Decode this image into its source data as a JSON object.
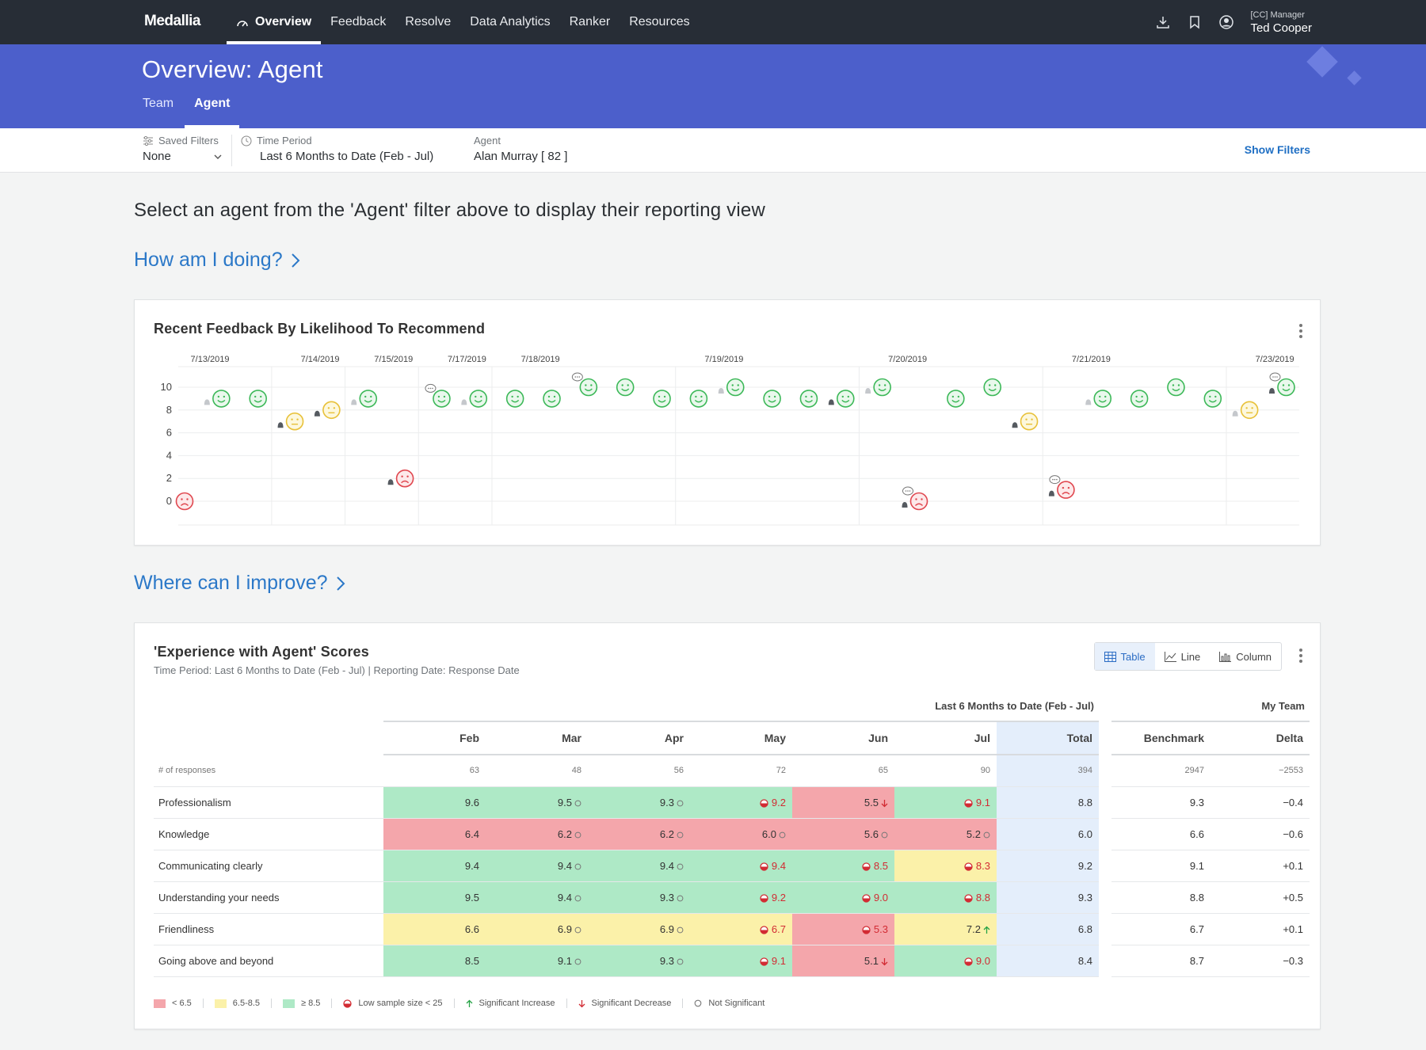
{
  "nav": {
    "logo": "Medallia",
    "items": [
      "Overview",
      "Feedback",
      "Resolve",
      "Data Analytics",
      "Ranker",
      "Resources"
    ],
    "active_index": 0,
    "user_role": "[CC] Manager",
    "user_name": "Ted Cooper"
  },
  "header": {
    "title": "Overview: Agent",
    "tabs": [
      "Team",
      "Agent"
    ],
    "active_tab": 1
  },
  "filters": {
    "saved_label": "Saved Filters",
    "saved_value": "None",
    "time_label": "Time Period",
    "time_value": "Last 6 Months to Date (Feb - Jul)",
    "agent_label": "Agent",
    "agent_value": "Alan Murray [ 82 ]",
    "show_filters": "Show Filters"
  },
  "instruction": "Select an agent from the 'Agent' filter above to display their reporting view",
  "section1": "How am I doing?",
  "section2": "Where can I improve?",
  "feedback_card": {
    "title": "Recent Feedback By Likelihood To Recommend",
    "chart_data": {
      "type": "scatter",
      "title": "Recent Feedback By Likelihood To Recommend",
      "date_labels": [
        {
          "label": "7/13/2019",
          "col": 0
        },
        {
          "label": "7/14/2019",
          "col": 3
        },
        {
          "label": "7/15/2019",
          "col": 5
        },
        {
          "label": "7/17/2019",
          "col": 7
        },
        {
          "label": "7/18/2019",
          "col": 9
        },
        {
          "label": "7/19/2019",
          "col": 14
        },
        {
          "label": "7/20/2019",
          "col": 19
        },
        {
          "label": "7/21/2019",
          "col": 24
        },
        {
          "label": "7/23/2019",
          "col": 29
        }
      ],
      "yticks": [
        0,
        2,
        4,
        6,
        8,
        10
      ],
      "ylim": [
        0,
        10
      ],
      "points": [
        {
          "col": 0,
          "value": 0,
          "sentiment": "negative"
        },
        {
          "col": 1,
          "value": 9,
          "sentiment": "positive",
          "bell": "grey"
        },
        {
          "col": 2,
          "value": 9,
          "sentiment": "positive"
        },
        {
          "col": 3,
          "value": 7,
          "sentiment": "neutral",
          "bell": "dark"
        },
        {
          "col": 4,
          "value": 8,
          "sentiment": "neutral",
          "bell": "dark"
        },
        {
          "col": 5,
          "value": 9,
          "sentiment": "positive",
          "bell": "grey"
        },
        {
          "col": 6,
          "value": 2,
          "sentiment": "negative",
          "bell": "dark"
        },
        {
          "col": 7,
          "value": 9,
          "sentiment": "positive",
          "comment": true
        },
        {
          "col": 8,
          "value": 9,
          "sentiment": "positive",
          "bell": "grey"
        },
        {
          "col": 9,
          "value": 9,
          "sentiment": "positive"
        },
        {
          "col": 10,
          "value": 9,
          "sentiment": "positive"
        },
        {
          "col": 11,
          "value": 10,
          "sentiment": "positive",
          "comment": true
        },
        {
          "col": 12,
          "value": 10,
          "sentiment": "positive"
        },
        {
          "col": 13,
          "value": 9,
          "sentiment": "positive"
        },
        {
          "col": 14,
          "value": 9,
          "sentiment": "positive"
        },
        {
          "col": 15,
          "value": 10,
          "sentiment": "positive",
          "bell": "grey"
        },
        {
          "col": 16,
          "value": 9,
          "sentiment": "positive"
        },
        {
          "col": 17,
          "value": 9,
          "sentiment": "positive"
        },
        {
          "col": 18,
          "value": 9,
          "sentiment": "positive",
          "bell": "dark"
        },
        {
          "col": 19,
          "value": 10,
          "sentiment": "positive",
          "bell": "grey"
        },
        {
          "col": 20,
          "value": 0,
          "sentiment": "negative",
          "bell": "dark",
          "comment": true
        },
        {
          "col": 21,
          "value": 9,
          "sentiment": "positive"
        },
        {
          "col": 22,
          "value": 10,
          "sentiment": "positive"
        },
        {
          "col": 23,
          "value": 7,
          "sentiment": "neutral",
          "bell": "dark"
        },
        {
          "col": 24,
          "value": 1,
          "sentiment": "negative",
          "bell": "dark",
          "comment": true
        },
        {
          "col": 25,
          "value": 9,
          "sentiment": "positive",
          "bell": "grey"
        },
        {
          "col": 26,
          "value": 9,
          "sentiment": "positive"
        },
        {
          "col": 27,
          "value": 10,
          "sentiment": "positive"
        },
        {
          "col": 28,
          "value": 9,
          "sentiment": "positive"
        },
        {
          "col": 29,
          "value": 8,
          "sentiment": "neutral",
          "bell": "grey"
        },
        {
          "col": 30,
          "value": 10,
          "sentiment": "positive",
          "bell": "dark",
          "comment": true
        }
      ]
    }
  },
  "scores_card": {
    "title": "'Experience with Agent' Scores",
    "subtitle": "Time Period: Last 6 Months to Date (Feb - Jul) | Reporting Date: Response Date",
    "view_options": [
      "Table",
      "Line",
      "Column"
    ],
    "active_view": 0,
    "group_header_period": "Last 6 Months to Date (Feb - Jul)",
    "group_header_team": "My Team",
    "columns": [
      "Feb",
      "Mar",
      "Apr",
      "May",
      "Jun",
      "Jul",
      "Total",
      "Benchmark",
      "Delta"
    ],
    "responses": {
      "label": "# of responses",
      "values": [
        "63",
        "48",
        "56",
        "72",
        "65",
        "90"
      ],
      "total": "394",
      "benchmark": "2947",
      "delta": "−2553"
    },
    "rows": [
      {
        "label": "Professionalism",
        "cells": [
          {
            "v": "9.6",
            "c": "green",
            "m": ""
          },
          {
            "v": "9.5",
            "c": "green",
            "m": "ns"
          },
          {
            "v": "9.3",
            "c": "green",
            "m": "ns"
          },
          {
            "v": "9.2",
            "c": "green",
            "m": "low"
          },
          {
            "v": "5.5",
            "c": "red",
            "m": "down"
          },
          {
            "v": "9.1",
            "c": "green",
            "m": "low"
          }
        ],
        "total": "8.8",
        "benchmark": "9.3",
        "delta": "−0.4"
      },
      {
        "label": "Knowledge",
        "cells": [
          {
            "v": "6.4",
            "c": "red",
            "m": ""
          },
          {
            "v": "6.2",
            "c": "red",
            "m": "ns"
          },
          {
            "v": "6.2",
            "c": "red",
            "m": "ns"
          },
          {
            "v": "6.0",
            "c": "red",
            "m": "ns"
          },
          {
            "v": "5.6",
            "c": "red",
            "m": "ns"
          },
          {
            "v": "5.2",
            "c": "red",
            "m": "ns"
          }
        ],
        "total": "6.0",
        "benchmark": "6.6",
        "delta": "−0.6"
      },
      {
        "label": "Communicating clearly",
        "cells": [
          {
            "v": "9.4",
            "c": "green",
            "m": ""
          },
          {
            "v": "9.4",
            "c": "green",
            "m": "ns"
          },
          {
            "v": "9.4",
            "c": "green",
            "m": "ns"
          },
          {
            "v": "9.4",
            "c": "green",
            "m": "low"
          },
          {
            "v": "8.5",
            "c": "green",
            "m": "low"
          },
          {
            "v": "8.3",
            "c": "yellow",
            "m": "low"
          }
        ],
        "total": "9.2",
        "benchmark": "9.1",
        "delta": "+0.1"
      },
      {
        "label": "Understanding your needs",
        "cells": [
          {
            "v": "9.5",
            "c": "green",
            "m": ""
          },
          {
            "v": "9.4",
            "c": "green",
            "m": "ns"
          },
          {
            "v": "9.3",
            "c": "green",
            "m": "ns"
          },
          {
            "v": "9.2",
            "c": "green",
            "m": "low"
          },
          {
            "v": "9.0",
            "c": "green",
            "m": "low"
          },
          {
            "v": "8.8",
            "c": "green",
            "m": "low"
          }
        ],
        "total": "9.3",
        "benchmark": "8.8",
        "delta": "+0.5"
      },
      {
        "label": "Friendliness",
        "cells": [
          {
            "v": "6.6",
            "c": "yellow",
            "m": ""
          },
          {
            "v": "6.9",
            "c": "yellow",
            "m": "ns"
          },
          {
            "v": "6.9",
            "c": "yellow",
            "m": "ns"
          },
          {
            "v": "6.7",
            "c": "yellow",
            "m": "low"
          },
          {
            "v": "5.3",
            "c": "red",
            "m": "low"
          },
          {
            "v": "7.2",
            "c": "yellow",
            "m": "up"
          }
        ],
        "total": "6.8",
        "benchmark": "6.7",
        "delta": "+0.1"
      },
      {
        "label": "Going above and beyond",
        "cells": [
          {
            "v": "8.5",
            "c": "green",
            "m": ""
          },
          {
            "v": "9.1",
            "c": "green",
            "m": "ns"
          },
          {
            "v": "9.3",
            "c": "green",
            "m": "ns"
          },
          {
            "v": "9.1",
            "c": "green",
            "m": "low"
          },
          {
            "v": "5.1",
            "c": "red",
            "m": "down"
          },
          {
            "v": "9.0",
            "c": "green",
            "m": "low"
          }
        ],
        "total": "8.4",
        "benchmark": "8.7",
        "delta": "−0.3"
      }
    ],
    "legend": {
      "red": "< 6.5",
      "yellow": "6.5-8.5",
      "green": "≥ 8.5",
      "low": "Low sample size < 25",
      "up": "Significant Increase",
      "down": "Significant Decrease",
      "ns": "Not Significant"
    }
  },
  "colors": {
    "nav_bg": "#272d36",
    "band_bg": "#4c5fcb",
    "link": "#2b78c8",
    "positive": "#3cb858",
    "neutral": "#e8c13a",
    "negative": "#e0474f",
    "cell_red": "#f4a6ab",
    "cell_yellow": "#fbf1a9",
    "cell_green": "#aee9c6",
    "total_bg": "#e4eefb"
  }
}
